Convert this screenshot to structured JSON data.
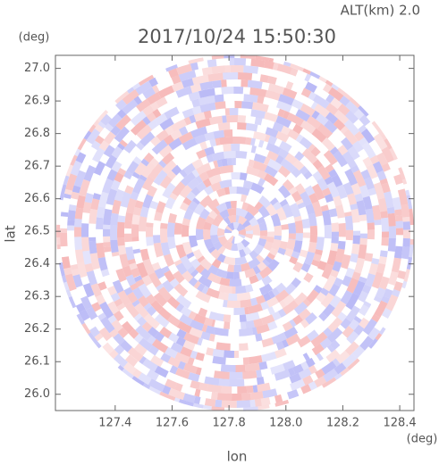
{
  "chart_data": {
    "type": "ppi",
    "title": "2017/10/24 15:50:30",
    "subtitle": "ALT(km) 2.0",
    "x_label": "lon",
    "y_label": "lat",
    "x_unit": "(deg)",
    "y_unit": "(deg)",
    "xlim": [
      127.19,
      128.45
    ],
    "ylim": [
      25.95,
      27.04
    ],
    "xticks": [
      127.4,
      127.6,
      127.8,
      {
        "value": 128.0,
        "label": "128.0"
      },
      128.2,
      128.4
    ],
    "yticks": [
      {
        "value": 26.0,
        "label": "26.0"
      },
      26.1,
      26.2,
      26.3,
      26.4,
      26.5,
      26.6,
      26.7,
      26.8,
      26.9,
      {
        "value": 27.0,
        "label": "27.0"
      }
    ],
    "colors": [
      "#f4a6a6",
      "#a8a8f4"
    ]
  }
}
